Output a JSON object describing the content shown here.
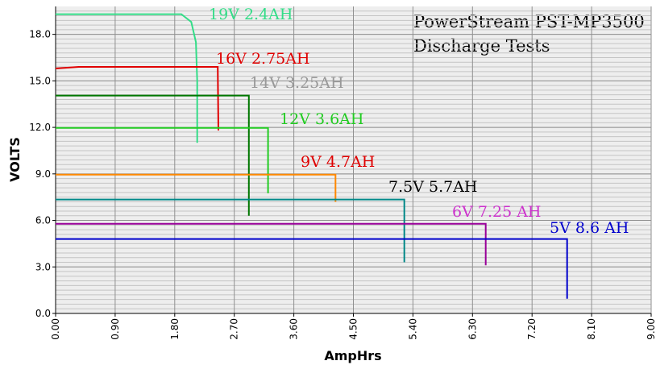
{
  "chart_data": {
    "type": "line",
    "title": "PowerStream PST-MP3500",
    "subtitle": "Discharge Tests",
    "x_label": "AmpHrs",
    "y_label": "VOLTS",
    "xlim": [
      0,
      9
    ],
    "ylim": [
      0,
      19.8
    ],
    "xticks": [
      {
        "value": 0,
        "label": "0.00"
      },
      {
        "value": 0.9,
        "label": "0.90"
      },
      {
        "value": 1.8,
        "label": "1.80"
      },
      {
        "value": 2.7,
        "label": "2.70"
      },
      {
        "value": 3.6,
        "label": "3.60"
      },
      {
        "value": 4.5,
        "label": "4.50"
      },
      {
        "value": 5.4,
        "label": "5.40"
      },
      {
        "value": 6.3,
        "label": "6.30"
      },
      {
        "value": 7.2,
        "label": "7.20"
      },
      {
        "value": 8.1,
        "label": "8.10"
      },
      {
        "value": 9,
        "label": "9.00"
      }
    ],
    "yticks": [
      {
        "value": 0,
        "label": "0.0"
      },
      {
        "value": 3,
        "label": "3.0"
      },
      {
        "value": 6,
        "label": "6.0"
      },
      {
        "value": 9,
        "label": "9.0"
      },
      {
        "value": 12,
        "label": "12.0"
      },
      {
        "value": 15,
        "label": "15.0"
      },
      {
        "value": 18,
        "label": "18.0"
      }
    ],
    "grid": true,
    "minor_grid": true,
    "series": [
      {
        "name": "19V 2.4AH",
        "color": "#33dd88",
        "label_color": "#33dd88",
        "x": [
          0,
          1.9,
          2.05,
          2.12,
          2.14,
          2.14
        ],
        "values": [
          19.3,
          19.3,
          18.8,
          17.5,
          15,
          11.0
        ]
      },
      {
        "name": "16V 2.75AH",
        "color": "#e00000",
        "label_color": "#e00000",
        "x": [
          0,
          0.35,
          2.45,
          2.46
        ],
        "values": [
          15.8,
          15.9,
          15.9,
          11.8
        ]
      },
      {
        "name": "14V 3.25AH",
        "color": "#007700",
        "label_color": "#999999",
        "x": [
          0,
          2.92,
          2.92
        ],
        "values": [
          14.05,
          14.05,
          6.3
        ]
      },
      {
        "name": "12V 3.6AH",
        "color": "#22cc22",
        "label_color": "#22cc22",
        "x": [
          0,
          3.21,
          3.21
        ],
        "values": [
          11.97,
          11.97,
          7.75
        ]
      },
      {
        "name": "9V 4.7AH",
        "color": "#ff8800",
        "label_color": "#e00000",
        "x": [
          0,
          4.23,
          4.23
        ],
        "values": [
          8.95,
          8.95,
          7.2
        ]
      },
      {
        "name": "7.5V 5.7AH",
        "color": "#008888",
        "label_color": "#000000",
        "x": [
          0,
          5.27,
          5.27
        ],
        "values": [
          7.35,
          7.35,
          3.3
        ]
      },
      {
        "name": "6V 7.25 AH",
        "color": "#990099",
        "label_color": "#cc33cc",
        "x": [
          0,
          6.5,
          6.5
        ],
        "values": [
          5.78,
          5.78,
          3.1
        ]
      },
      {
        "name": "5V 8.6 AH",
        "color": "#0000cc",
        "label_color": "#0000cc",
        "x": [
          0,
          7.73,
          7.73
        ],
        "values": [
          4.8,
          4.8,
          0.95
        ]
      }
    ]
  }
}
